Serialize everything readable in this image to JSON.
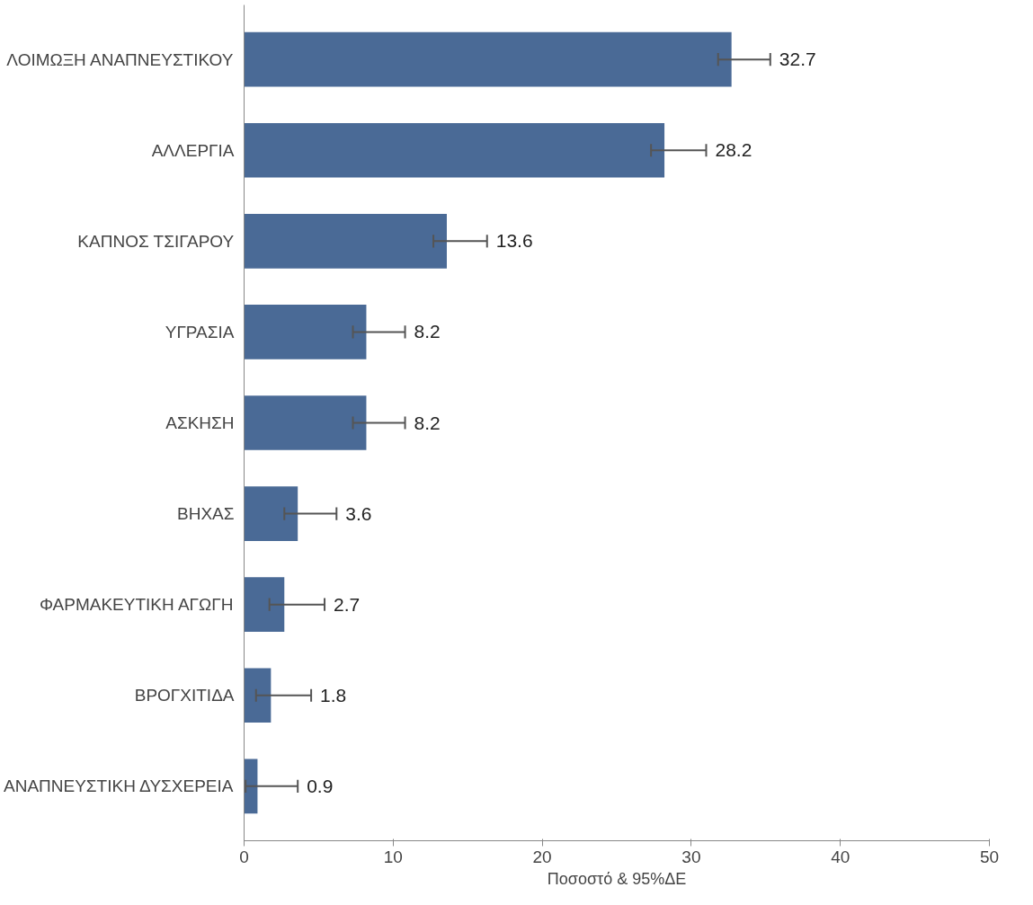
{
  "chart_data": {
    "type": "bar",
    "orientation": "horizontal",
    "xlabel": "Ποσοστό & 95%ΔΕ",
    "categories": [
      "ΛΟΙΜΩΞΗ ΑΝΑΠΝΕΥΣΤΙΚΟΥ",
      "ΑΛΛΕΡΓΙΑ",
      "ΚΑΠΝΟΣ ΤΣΙΓΑΡΟΥ",
      "ΥΓΡΑΣΙΑ",
      "ΑΣΚΗΣΗ",
      "ΒΗΧΑΣ",
      "ΦΑΡΜΑΚΕΥΤΙΚΗ ΑΓΩΓΗ",
      "ΒΡΟΓΧΙΤΙΔΑ",
      "ΑΝΑΠΝΕΥΣΤΙΚΗ ΔΥΣΧΕΡΕΙΑ"
    ],
    "values": [
      32.7,
      28.2,
      13.6,
      8.2,
      8.2,
      3.6,
      2.7,
      1.8,
      0.9
    ],
    "errors": [
      [
        31.8,
        35.3
      ],
      [
        27.3,
        31.0
      ],
      [
        12.7,
        16.3
      ],
      [
        7.3,
        10.8
      ],
      [
        7.3,
        10.8
      ],
      [
        2.7,
        6.2
      ],
      [
        1.7,
        5.4
      ],
      [
        0.8,
        4.5
      ],
      [
        0.1,
        3.6
      ]
    ],
    "color": "#4a6a96",
    "data_labels": true,
    "grid": false,
    "xlim": [
      0,
      50
    ],
    "xticks": [
      0,
      10,
      20,
      30,
      40,
      50
    ]
  }
}
